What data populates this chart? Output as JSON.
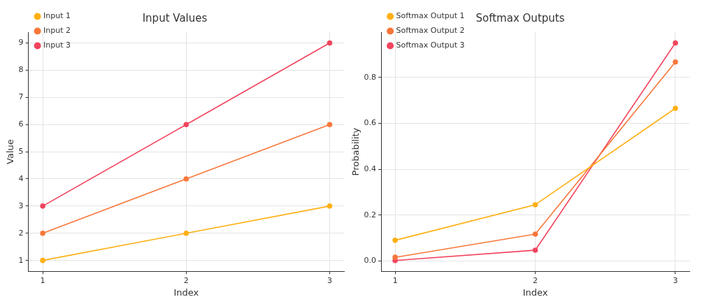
{
  "chart_data": [
    {
      "type": "line",
      "title": "Input Values",
      "xlabel": "Index",
      "ylabel": "Value",
      "x": [
        1,
        2,
        3
      ],
      "xlim": [
        0.9,
        3.1
      ],
      "xticks": [
        1,
        2,
        3
      ],
      "ylim": [
        0.6,
        9.4
      ],
      "yticks": [
        1,
        2,
        3,
        4,
        5,
        6,
        7,
        8,
        9
      ],
      "grid": true,
      "legend": "top left",
      "marker": "circle",
      "series": [
        {
          "name": "Input 1",
          "color": "#ffb014",
          "values": [
            1,
            2,
            3
          ]
        },
        {
          "name": "Input 2",
          "color": "#f7773a",
          "values": [
            2,
            4,
            6
          ]
        },
        {
          "name": "Input 3",
          "color": "#f2445e",
          "values": [
            3,
            6,
            9
          ]
        }
      ]
    },
    {
      "type": "line",
      "title": "Softmax Outputs",
      "xlabel": "Index",
      "ylabel": "Probability",
      "x": [
        1,
        2,
        3
      ],
      "xlim": [
        0.9,
        3.1
      ],
      "xticks": [
        1,
        2,
        3
      ],
      "ylim": [
        -0.045,
        0.997
      ],
      "yticks": [
        {
          "value": 0,
          "label": "0.0"
        },
        {
          "value": 0.2,
          "label": "0.2"
        },
        {
          "value": 0.4,
          "label": "0.4"
        },
        {
          "value": 0.6,
          "label": "0.6"
        },
        {
          "value": 0.8,
          "label": "0.8"
        }
      ],
      "grid": true,
      "legend": "top left",
      "marker": "circle",
      "series": [
        {
          "name": "Softmax Output 1",
          "color": "#ffb014",
          "values": [
            0.09,
            0.245,
            0.665
          ]
        },
        {
          "name": "Softmax Output 2",
          "color": "#f7773a",
          "values": [
            0.016,
            0.117,
            0.867
          ]
        },
        {
          "name": "Softmax Output 3",
          "color": "#f2445e",
          "values": [
            0.002,
            0.047,
            0.95
          ]
        }
      ]
    }
  ]
}
